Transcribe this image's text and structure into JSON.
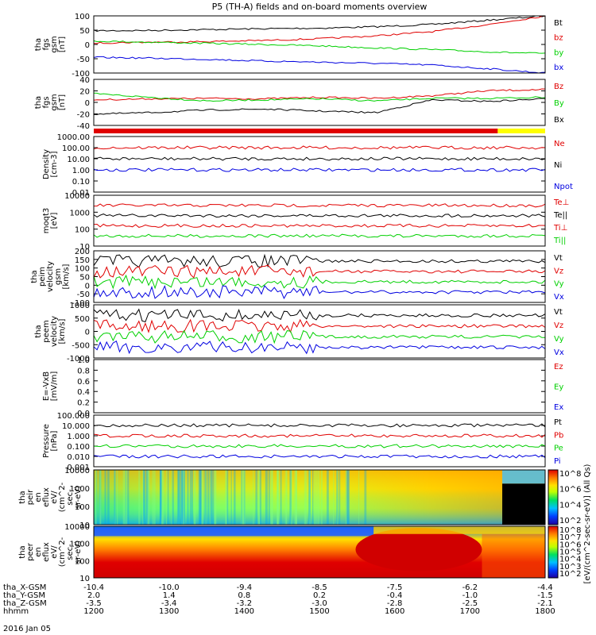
{
  "title": "P5 (TH-A) fields and on-board moments overview",
  "date": "2016 Jan 05",
  "colors": {
    "black": "#000000",
    "red": "#e00000",
    "green": "#00d000",
    "blue": "#0000e0",
    "yellow": "#ffff00"
  },
  "chart_data": [
    {
      "type": "line",
      "panel": "fgs_gsm",
      "ylabel": [
        "tha",
        "fgs",
        "gsm",
        "[nT]"
      ],
      "ylim": [
        -100,
        100
      ],
      "yticks": [
        "100",
        "50",
        "0",
        "-50",
        "-100"
      ],
      "series": [
        {
          "name": "Bt",
          "color": "#000000",
          "values": [
            48,
            49,
            52,
            55,
            57,
            62,
            70,
            85,
            100
          ]
        },
        {
          "name": "bz",
          "color": "#e00000",
          "values": [
            5,
            8,
            10,
            14,
            20,
            30,
            45,
            70,
            100
          ]
        },
        {
          "name": "by",
          "color": "#00d000",
          "values": [
            12,
            8,
            4,
            0,
            -5,
            -12,
            -18,
            -26,
            -32
          ]
        },
        {
          "name": "bx",
          "color": "#0000e0",
          "values": [
            -45,
            -48,
            -52,
            -58,
            -62,
            -66,
            -72,
            -85,
            -100
          ]
        }
      ]
    },
    {
      "type": "line",
      "panel": "fgs_gse",
      "ylabel": [
        "tha",
        "fgs",
        "gsm",
        "[nT]"
      ],
      "ylim": [
        -50,
        40
      ],
      "yticks": [
        "40",
        "20",
        "0",
        "-20",
        "-40"
      ],
      "series": [
        {
          "name": "Bz",
          "color": "#e00000",
          "values": [
            0,
            2,
            3,
            2,
            5,
            3,
            8,
            18,
            20
          ]
        },
        {
          "name": "By",
          "color": "#00d000",
          "values": [
            12,
            5,
            -2,
            0,
            2,
            -2,
            3,
            3,
            5
          ]
        },
        {
          "name": "Bx",
          "color": "#000000",
          "values": [
            -28,
            -25,
            -20,
            -18,
            -22,
            -25,
            0,
            -3,
            2
          ]
        }
      ]
    },
    {
      "type": "line",
      "panel": "density",
      "ylabel": [
        "Density",
        "[cm-3]"
      ],
      "log": true,
      "yticks": [
        "1000.00",
        "100.00",
        "10.00",
        "1.00",
        "0.10",
        "0.01"
      ],
      "series": [
        {
          "name": "Ne",
          "color": "#e00000"
        },
        {
          "name": "Ni",
          "color": "#000000"
        },
        {
          "name": "Npot",
          "color": "#0000e0"
        }
      ]
    },
    {
      "type": "line",
      "panel": "temperature",
      "ylabel": [
        "moqt3",
        "[eV]"
      ],
      "log": true,
      "yticks": [
        "10000",
        "1000",
        "100",
        "10"
      ],
      "series": [
        {
          "name": "Te⊥",
          "color": "#e00000"
        },
        {
          "name": "Te||",
          "color": "#000000"
        },
        {
          "name": "Ti⊥",
          "color": "#e00000"
        },
        {
          "name": "Ti||",
          "color": "#00d000"
        }
      ]
    },
    {
      "type": "line",
      "panel": "peim_velocity",
      "ylabel": [
        "tha",
        "peim",
        "velocity",
        "gsm",
        "[km/s]"
      ],
      "ylim": [
        -100,
        200
      ],
      "yticks": [
        "200",
        "150",
        "100",
        "50",
        "0",
        "-50",
        "-100"
      ],
      "series": [
        {
          "name": "Vt",
          "color": "#000000"
        },
        {
          "name": "Vz",
          "color": "#e00000"
        },
        {
          "name": "Vy",
          "color": "#00d000"
        },
        {
          "name": "Vx",
          "color": "#0000e0"
        }
      ]
    },
    {
      "type": "line",
      "panel": "peem_velocity",
      "ylabel": [
        "tha",
        "peem",
        "velocity",
        "[km/s]"
      ],
      "ylim": [
        -1000,
        1000
      ],
      "yticks": [
        "1000",
        "500",
        "0",
        "-500",
        "-1000"
      ],
      "series": [
        {
          "name": "Vt",
          "color": "#000000"
        },
        {
          "name": "Vz",
          "color": "#e00000"
        },
        {
          "name": "Vy",
          "color": "#00d000"
        },
        {
          "name": "Vx",
          "color": "#0000e0"
        }
      ]
    },
    {
      "type": "line",
      "panel": "efield",
      "ylabel": [
        "E=-VxB",
        "[mV/m]"
      ],
      "ylim": [
        0,
        1
      ],
      "yticks": [
        "1.0",
        "0.8",
        "0.6",
        "0.4",
        "0.2",
        "0.0"
      ],
      "series": [
        {
          "name": "Ez",
          "color": "#e00000"
        },
        {
          "name": "Ey",
          "color": "#00d000"
        },
        {
          "name": "Ex",
          "color": "#0000e0"
        }
      ]
    },
    {
      "type": "line",
      "panel": "pressure",
      "ylabel": [
        "Pressure",
        "[nPa]"
      ],
      "log": true,
      "yticks": [
        "100.000",
        "10.000",
        "1.000",
        "0.100",
        "0.010",
        "0.001"
      ],
      "series": [
        {
          "name": "Pt",
          "color": "#000000"
        },
        {
          "name": "Pb",
          "color": "#e00000"
        },
        {
          "name": "Pe",
          "color": "#00d000"
        },
        {
          "name": "Pi",
          "color": "#0000e0"
        }
      ]
    },
    {
      "type": "heatmap",
      "panel": "peir_spectrogram",
      "ylabel": [
        "tha",
        "peir",
        "en",
        "eflux",
        "eV/",
        "(cm^2-",
        "sec-",
        "sr-eV)"
      ],
      "yticks": [
        "10000",
        "1000",
        "100",
        "10"
      ]
    },
    {
      "type": "heatmap",
      "panel": "peer_spectrogram",
      "ylabel": [
        "tha",
        "peer",
        "en",
        "eflux",
        "eV/",
        "(cm^2-",
        "sec-",
        "sr-eV)"
      ],
      "yticks": [
        "10000",
        "1000",
        "100",
        "10"
      ]
    }
  ],
  "colorbar": {
    "label": "[eV/(cm^2-sec-sr-eV)] (All Qs)",
    "upper_ticks": [
      "10^8",
      "10^6",
      "10^4",
      "10^2"
    ],
    "lower_ticks": [
      "10^8",
      "10^7",
      "10^6",
      "10^5",
      "10^4",
      "10^3",
      "10^2"
    ]
  },
  "xaxis": {
    "rows": [
      {
        "label": "tha_X-GSM",
        "values": [
          "-10.4",
          "-10.0",
          "-9.4",
          "-8.5",
          "-7.5",
          "-6.2",
          "-4.4"
        ]
      },
      {
        "label": "tha_Y-GSM",
        "values": [
          "2.0",
          "1.4",
          "0.8",
          "0.2",
          "-0.4",
          "-1.0",
          "-1.5"
        ]
      },
      {
        "label": "tha_Z-GSM",
        "values": [
          "-3.5",
          "-3.4",
          "-3.2",
          "-3.0",
          "-2.8",
          "-2.5",
          "-2.1"
        ]
      },
      {
        "label": "hhmm",
        "values": [
          "1200",
          "1300",
          "1400",
          "1500",
          "1600",
          "1700",
          "1800"
        ]
      }
    ]
  }
}
